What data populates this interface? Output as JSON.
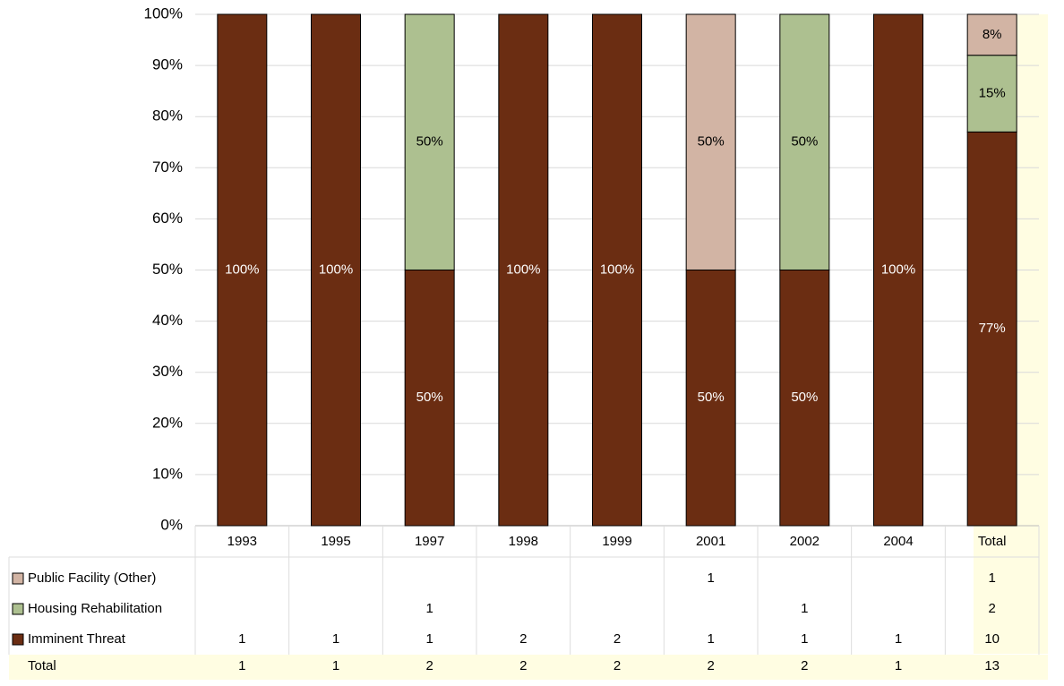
{
  "chart_data": {
    "type": "stacked_bar_percent",
    "categories": [
      "1993",
      "1995",
      "1997",
      "1998",
      "1999",
      "2001",
      "2002",
      "2004",
      "Total"
    ],
    "series": [
      {
        "name": "Imminent Threat",
        "color": "#6b2d12",
        "values": [
          100,
          100,
          50,
          100,
          100,
          50,
          50,
          100,
          77
        ],
        "value_labels": [
          "100%",
          "100%",
          "50%",
          "100%",
          "100%",
          "50%",
          "50%",
          "100%",
          "77%"
        ],
        "counts": [
          1,
          1,
          1,
          2,
          2,
          1,
          1,
          1,
          10
        ]
      },
      {
        "name": "Housing Rehabilitation",
        "color": "#adc090",
        "values": [
          null,
          null,
          50,
          null,
          null,
          null,
          50,
          null,
          15
        ],
        "value_labels": [
          null,
          null,
          "50%",
          null,
          null,
          null,
          "50%",
          null,
          "15%"
        ],
        "counts": [
          null,
          null,
          1,
          null,
          null,
          null,
          1,
          null,
          2
        ]
      },
      {
        "name": "Public Facility (Other)",
        "color": "#d2b4a4",
        "values": [
          null,
          null,
          null,
          null,
          null,
          50,
          null,
          null,
          8
        ],
        "value_labels": [
          null,
          null,
          null,
          null,
          null,
          "50%",
          null,
          null,
          "8%"
        ],
        "counts": [
          null,
          null,
          null,
          null,
          null,
          1,
          null,
          null,
          1
        ]
      }
    ],
    "total_label": "Total",
    "totals": [
      1,
      1,
      2,
      2,
      2,
      2,
      2,
      1,
      13
    ],
    "ylim": [
      0,
      100
    ],
    "yticks": [
      {
        "value": 0,
        "label": "0%"
      },
      {
        "value": 10,
        "label": "10%"
      },
      {
        "value": 20,
        "label": "20%"
      },
      {
        "value": 30,
        "label": "30%"
      },
      {
        "value": 40,
        "label": "40%"
      },
      {
        "value": 50,
        "label": "50%"
      },
      {
        "value": 60,
        "label": "60%"
      },
      {
        "value": 70,
        "label": "70%"
      },
      {
        "value": 80,
        "label": "80%"
      },
      {
        "value": 90,
        "label": "90%"
      },
      {
        "value": 100,
        "label": "100%"
      }
    ],
    "grid": true
  }
}
